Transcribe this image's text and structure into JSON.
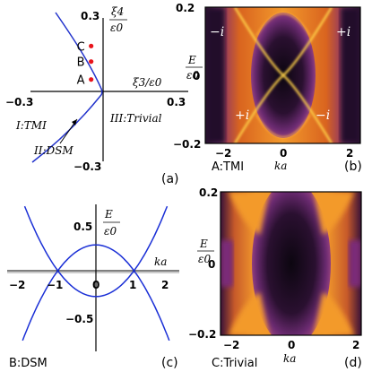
{
  "panel_a": {
    "x_axis_label": "ξ3/ε0",
    "y_axis_num": "ξ4",
    "y_axis_den": "ε0",
    "tick_x_neg": "−0.3",
    "tick_x_pos": "0.3",
    "tick_y_pos": "0.3",
    "tick_y_neg": "−0.3",
    "region_tmi": "I:TMI",
    "region_dsm": "II:DSM",
    "region_trivial": "III:Trivial",
    "points": [
      {
        "label": "C",
        "xi3": -0.05,
        "xi4": 0.19
      },
      {
        "label": "B",
        "xi3": -0.05,
        "xi4": 0.125
      },
      {
        "label": "A",
        "xi3": -0.05,
        "xi4": 0.05
      }
    ],
    "point_color": "#e8141b",
    "boundary_color": "#2233cc",
    "panel_tag": "(a)"
  },
  "panel_b": {
    "E_num": "E",
    "E_den": "ε0",
    "ytick_top": "0.2",
    "ytick_mid": "0",
    "ytick_bot": "−0.2",
    "xticks": [
      "−2",
      "0",
      "2"
    ],
    "xlabel": "ka",
    "caption": "A:TMI",
    "labels": [
      "−i",
      "+i",
      "+i",
      "−i"
    ],
    "panel_tag": "(b)"
  },
  "panel_c": {
    "E_num": "E",
    "E_den": "ε0",
    "xlabel": "ka",
    "ytick_pos": "0.5",
    "ytick_neg": "−0.5",
    "xticks": [
      "−2",
      "−1",
      "0",
      "1",
      "2"
    ],
    "caption": "B:DSM",
    "panel_tag": "(c)"
  },
  "panel_d": {
    "E_num": "E",
    "E_den": "ε0",
    "ytick_top": "0.2",
    "ytick_mid": "0",
    "ytick_bot": "−0.2",
    "xticks": [
      "−2",
      "0",
      "2"
    ],
    "xlabel": "ka",
    "caption": "C:Trivial",
    "panel_tag": "(d)"
  },
  "chart_data": [
    {
      "type": "line",
      "panel": "c",
      "xlabel": "ka",
      "ylabel": "E/ε0",
      "xlim": [
        -2.2,
        2.2
      ],
      "ylim": [
        -0.85,
        0.8
      ],
      "series": [
        {
          "x": [
            -2,
            -1.5,
            -1,
            -0.5,
            0,
            0.5,
            1,
            1.5,
            2
          ],
          "y": [
            0.9,
            0.375,
            0,
            -0.225,
            -0.3,
            -0.225,
            0,
            0.375,
            0.9
          ]
        },
        {
          "x": [
            -2,
            -1.5,
            -1,
            -0.5,
            0,
            0.5,
            1,
            1.5,
            2
          ],
          "y": [
            -0.9,
            -0.375,
            0,
            0.225,
            0.3,
            0.225,
            0,
            -0.375,
            -0.9
          ]
        }
      ],
      "line_color": "#1a2fd6"
    },
    {
      "type": "heatmap",
      "panel": "b",
      "xlabel": "ka",
      "ylabel": "E/ε0",
      "xlim": [
        -2.2,
        2.2
      ],
      "ylim": [
        -0.2,
        0.2
      ],
      "colors": [
        "#1a0a1a",
        "#6a2a7a",
        "#e07a20",
        "#f6a12e"
      ]
    },
    {
      "type": "heatmap",
      "panel": "d",
      "xlabel": "ka",
      "ylabel": "E/ε0",
      "xlim": [
        -2.2,
        2.2
      ],
      "ylim": [
        -0.2,
        0.2
      ],
      "colors": [
        "#1a0a1a",
        "#6a2a7a",
        "#e07a20",
        "#f6a12e"
      ]
    }
  ]
}
